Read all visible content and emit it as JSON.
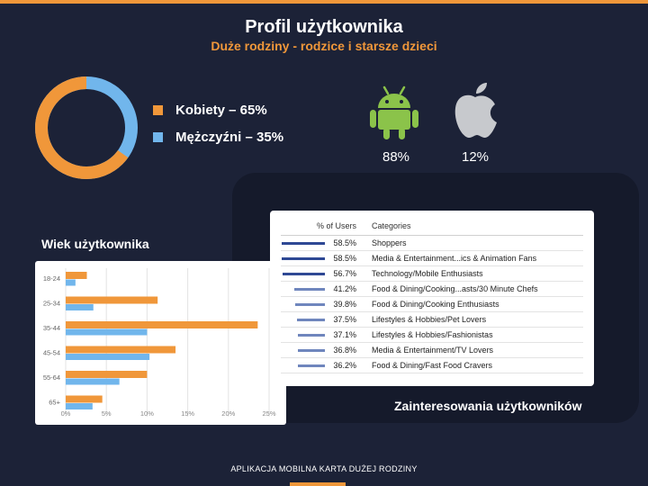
{
  "header": {
    "title": "Profil użytkownika",
    "subtitle": "Duże rodziny - rodzice i starsze dzieci"
  },
  "gender": {
    "female_label": "Kobiety – 65%",
    "male_label": "Mężczyźni – 35%",
    "female_value": 65,
    "male_value": 35,
    "female_color": "#f0973a",
    "male_color": "#71b6ec"
  },
  "os": {
    "android_icon": "android-icon",
    "android_pct": "88%",
    "apple_icon": "apple-icon",
    "apple_pct": "12%",
    "android_color": "#8bc34a",
    "apple_color": "#c7c9cd"
  },
  "age": {
    "label": "Wiek użytkownika"
  },
  "interests": {
    "label": "Zainteresowania użytkowników",
    "col_pct": "% of Users",
    "col_cat": "Categories",
    "rows": [
      {
        "pct": "58.5%",
        "value": 58.5,
        "category": "Shoppers",
        "color": "#2e4894"
      },
      {
        "pct": "58.5%",
        "value": 58.5,
        "category": "Media & Entertainment...ics & Animation Fans",
        "color": "#2e4894"
      },
      {
        "pct": "56.7%",
        "value": 56.7,
        "category": "Technology/Mobile Enthusiasts",
        "color": "#2e4894"
      },
      {
        "pct": "41.2%",
        "value": 41.2,
        "category": "Food & Dining/Cooking...asts/30 Minute Chefs",
        "color": "#6f86bd"
      },
      {
        "pct": "39.8%",
        "value": 39.8,
        "category": "Food & Dining/Cooking Enthusiasts",
        "color": "#6f86bd"
      },
      {
        "pct": "37.5%",
        "value": 37.5,
        "category": "Lifestyles & Hobbies/Pet Lovers",
        "color": "#6f86bd"
      },
      {
        "pct": "37.1%",
        "value": 37.1,
        "category": "Lifestyles & Hobbies/Fashionistas",
        "color": "#6f86bd"
      },
      {
        "pct": "36.8%",
        "value": 36.8,
        "category": "Media & Entertainment/TV Lovers",
        "color": "#6f86bd"
      },
      {
        "pct": "36.2%",
        "value": 36.2,
        "category": "Food & Dining/Fast Food Cravers",
        "color": "#6f86bd"
      }
    ]
  },
  "footer": {
    "text": "APLIKACJA MOBILNA KARTA DUŻEJ RODZINY"
  },
  "chart_data": [
    {
      "type": "pie",
      "categories": [
        "Kobiety",
        "Mężczyźni"
      ],
      "values": [
        65,
        35
      ],
      "colors": [
        "#f0973a",
        "#71b6ec"
      ]
    },
    {
      "type": "bar",
      "orientation": "horizontal",
      "categories": [
        "18-24",
        "25-34",
        "35-44",
        "45-54",
        "55-64",
        "65+"
      ],
      "series": [
        {
          "values": [
            2.6,
            11.3,
            23.6,
            13.5,
            10.0,
            4.5
          ],
          "color": "#f0973a"
        },
        {
          "values": [
            1.2,
            3.4,
            10.0,
            10.3,
            6.6,
            3.3
          ],
          "color": "#71b6ec"
        }
      ],
      "xlim": [
        0,
        25
      ],
      "xticks": [
        "0%",
        "5%",
        "10%",
        "15%",
        "20%",
        "25%"
      ],
      "grid": true
    }
  ]
}
